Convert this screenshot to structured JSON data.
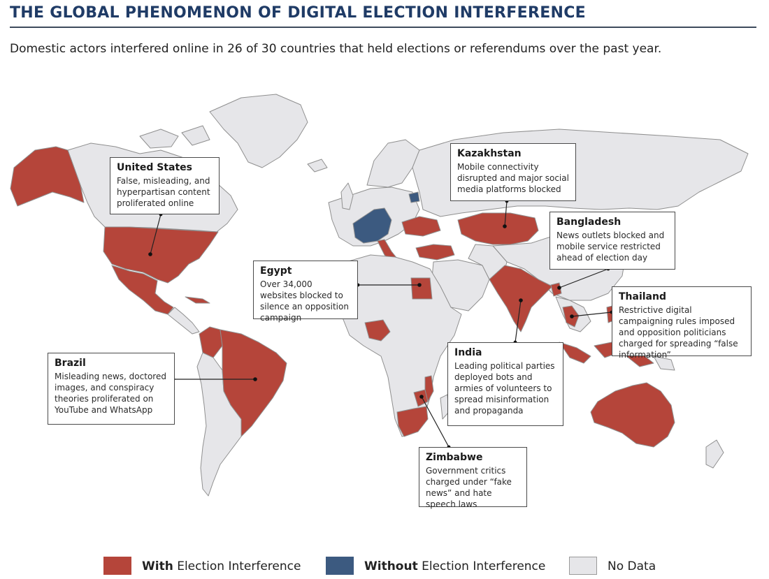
{
  "header": {
    "title": "THE GLOBAL PHENOMENON OF DIGITAL ELECTION INTERFERENCE",
    "subtitle": "Domestic actors interfered online in 26 of 30 countries that held elections or referendums over the past year."
  },
  "colors": {
    "with_interference": "#b5453a",
    "without_interference": "#3c5a80",
    "no_data": "#e6e6e9",
    "ocean": "#ffffff",
    "border": "#8f8f8f",
    "title": "#1f3b66"
  },
  "callouts": [
    {
      "id": "united-states",
      "name": "United States",
      "text": "False, misleading, and hyperpartisan content proliferated online"
    },
    {
      "id": "kazakhstan",
      "name": "Kazakhstan",
      "text": "Mobile connectivity disrupted and major social media platforms blocked"
    },
    {
      "id": "bangladesh",
      "name": "Bangladesh",
      "text": "News outlets blocked and mobile service restricted ahead of election day"
    },
    {
      "id": "egypt",
      "name": "Egypt",
      "text": "Over 34,000 websites blocked to silence an opposition campaign"
    },
    {
      "id": "thailand",
      "name": "Thailand",
      "text": "Restrictive digital campaigning rules imposed and opposition politicians charged for spreading “false information”"
    },
    {
      "id": "india",
      "name": "India",
      "text": "Leading political parties deployed bots and armies of volunteers to spread misinformation and propaganda"
    },
    {
      "id": "brazil",
      "name": "Brazil",
      "text": "Misleading news, doctored images, and conspiracy theories proliferated on YouTube and WhatsApp"
    },
    {
      "id": "zimbabwe",
      "name": "Zimbabwe",
      "text": "Government critics charged under “fake news” and hate speech laws"
    }
  ],
  "legend": [
    {
      "bold": "With",
      "rest": " Election Interference",
      "color": "#b5453a"
    },
    {
      "bold": "Without",
      "rest": " Election Interference",
      "color": "#3c5a80"
    },
    {
      "bold": "",
      "rest": "No Data",
      "color": "#e6e6e9"
    }
  ]
}
